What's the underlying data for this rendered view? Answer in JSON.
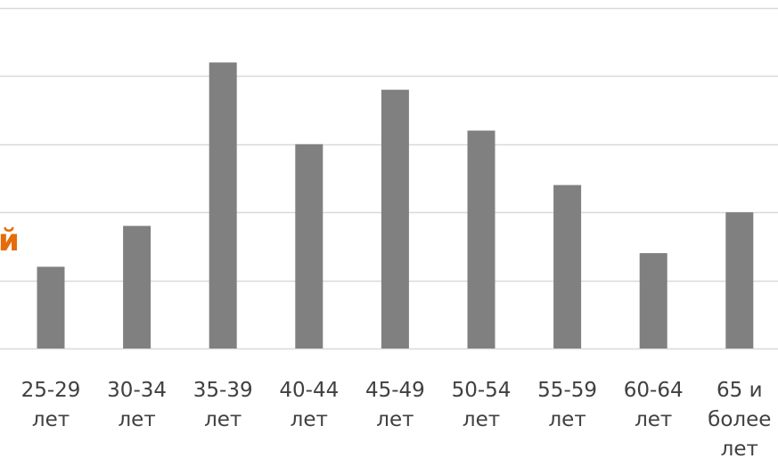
{
  "edge_text": "й",
  "chart_data": {
    "type": "bar",
    "categories": [
      [
        "25-29",
        "лет"
      ],
      [
        "30-34",
        "лет"
      ],
      [
        "35-39",
        "лет"
      ],
      [
        "40-44",
        "лет"
      ],
      [
        "45-49",
        "лет"
      ],
      [
        "50-54",
        "лет"
      ],
      [
        "55-59",
        "лет"
      ],
      [
        "60-64",
        "лет"
      ],
      [
        "65 и",
        "более",
        "лет"
      ]
    ],
    "values": [
      6,
      9,
      21,
      15,
      19,
      16,
      12,
      7,
      10
    ],
    "ylim": [
      0,
      25
    ],
    "grid_step": 5,
    "grid": true,
    "bar_color": "#808080",
    "grid_color": "#d9d9d9",
    "label_color": "#404040",
    "axis_line_color": "#d9d9d9"
  }
}
